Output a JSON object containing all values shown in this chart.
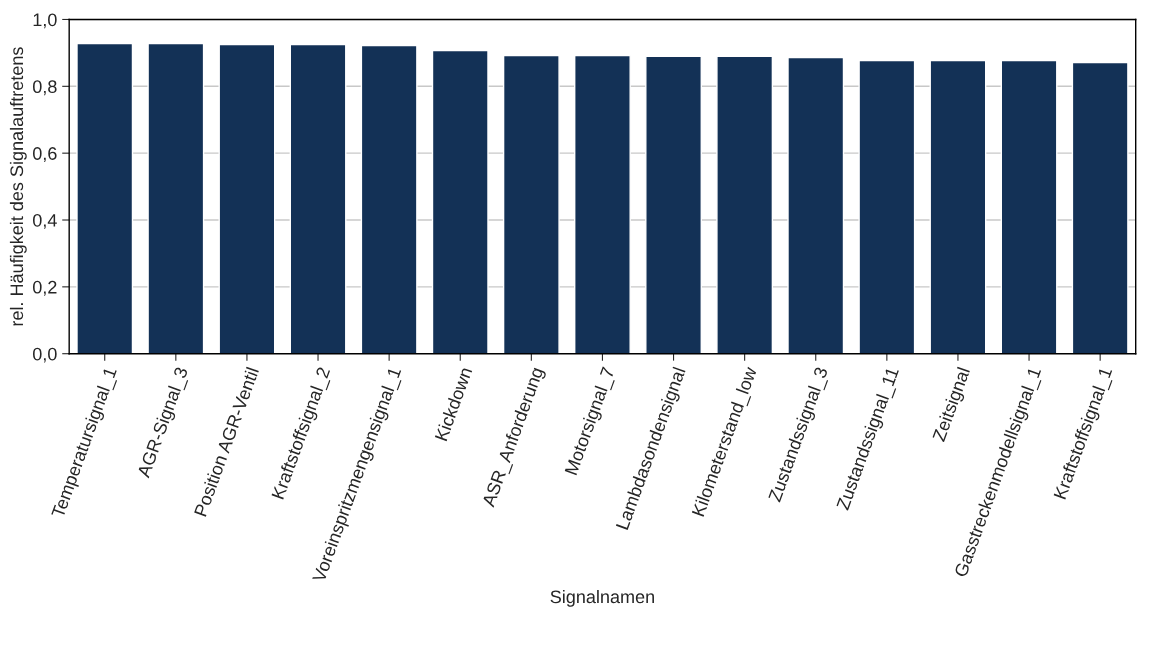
{
  "chart_data": {
    "type": "bar",
    "xlabel": "Signalnamen",
    "ylabel": "rel. Häufigkeit des Signalauftretens",
    "categories": [
      "Temperatursignal_1",
      "AGR-Signal_3",
      "Position AGR-Ventil",
      "Kraftstoffsignal_2",
      "Voreinspritzmengensignal_1",
      "Kickdown",
      "ASR_Anforderung",
      "Motorsignal_7",
      "Lambdasondensignal",
      "Kilometerstand_low",
      "Zustandssignal_3",
      "Zustandssignal_11",
      "Zeitsignal",
      "Gasstreckenmodellsignal_1",
      "Kraftstoffsignal_1"
    ],
    "values": [
      0.928,
      0.928,
      0.925,
      0.925,
      0.922,
      0.907,
      0.892,
      0.892,
      0.89,
      0.89,
      0.886,
      0.877,
      0.877,
      0.877,
      0.871
    ],
    "color": "#133156",
    "ylim": [
      0,
      1
    ],
    "yticks": [
      {
        "value": 0,
        "label": "0,0"
      },
      {
        "value": 0.2,
        "label": "0,2"
      },
      {
        "value": 0.4,
        "label": "0,4"
      },
      {
        "value": 0.6,
        "label": "0,6"
      },
      {
        "value": 0.8,
        "label": "0,8"
      },
      {
        "value": 1,
        "label": "1,0"
      }
    ],
    "grid": "y"
  }
}
